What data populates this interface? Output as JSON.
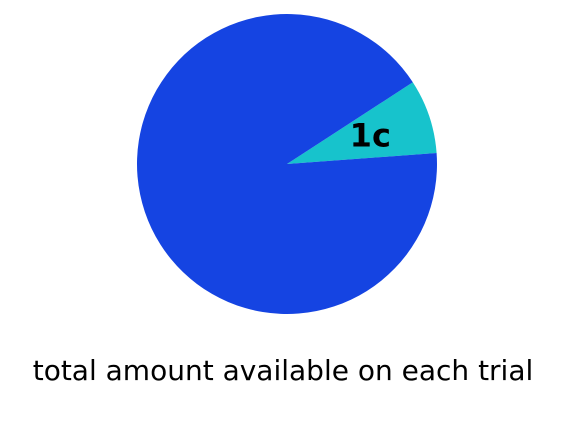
{
  "chart_data": {
    "type": "pie",
    "slices": [
      {
        "label": "1c",
        "value": 8,
        "color": "#17c3cc"
      },
      {
        "label": "",
        "value": 92,
        "color": "#1544e2"
      }
    ],
    "caption": "total amount available on each trial"
  }
}
